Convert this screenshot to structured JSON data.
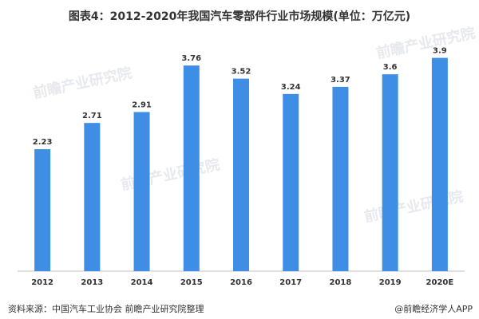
{
  "title": "图表4：2012-2020年我国汽车零部件行业市场规模(单位：万亿元)",
  "source": "资料来源：中国汽车工业协会 前瞻产业研究院整理",
  "credit": "@前瞻经济学人APP",
  "watermark": "前瞻产业研究院",
  "chart_data": {
    "type": "bar",
    "title": "图表4：2012-2020年我国汽车零部件行业市场规模(单位：万亿元)",
    "categories": [
      "2012",
      "2013",
      "2014",
      "2015",
      "2016",
      "2017",
      "2018",
      "2019",
      "2020E"
    ],
    "values": [
      2.23,
      2.71,
      2.91,
      3.76,
      3.52,
      3.24,
      3.37,
      3.6,
      3.9
    ],
    "value_labels": [
      "2.23",
      "2.71",
      "2.91",
      "3.76",
      "3.52",
      "3.24",
      "3.37",
      "3.6",
      "3.9"
    ],
    "ylim": [
      0,
      4.2
    ],
    "grid": false,
    "bar_color": "#3e8ee6"
  }
}
